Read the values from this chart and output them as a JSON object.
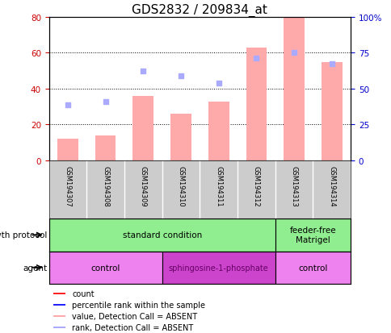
{
  "title": "GDS2832 / 209834_at",
  "samples": [
    "GSM194307",
    "GSM194308",
    "GSM194309",
    "GSM194310",
    "GSM194311",
    "GSM194312",
    "GSM194313",
    "GSM194314"
  ],
  "bar_values": [
    12,
    14,
    36,
    26,
    33,
    63,
    80,
    55
  ],
  "scatter_values": [
    31,
    33,
    50,
    47,
    43,
    57,
    60,
    54
  ],
  "left_ylim": [
    0,
    80
  ],
  "right_ylim": [
    0,
    100
  ],
  "left_yticks": [
    0,
    20,
    40,
    60,
    80
  ],
  "right_yticks": [
    0,
    25,
    50,
    75,
    100
  ],
  "right_yticklabels": [
    "0",
    "25",
    "50",
    "75",
    "100%"
  ],
  "bar_color": "#ffaaaa",
  "scatter_color": "#aaaaff",
  "bar_color_legend": "#ff2222",
  "scatter_color_legend": "#2222ff",
  "left_ylabel_color": "#cc0000",
  "right_ylabel_color": "#0000cc",
  "growth_protocol_label": "growth protocol",
  "agent_label": "agent",
  "growth_protocol_groups": [
    {
      "label": "standard condition",
      "start": 0,
      "end": 6,
      "color": "#90ee90"
    },
    {
      "label": "feeder-free\nMatrigel",
      "start": 6,
      "end": 8,
      "color": "#90ee90"
    }
  ],
  "agent_groups": [
    {
      "label": "control",
      "start": 0,
      "end": 3,
      "color": "#ee82ee"
    },
    {
      "label": "sphingosine-1-phosphate",
      "start": 3,
      "end": 6,
      "color": "#cc44cc"
    },
    {
      "label": "control",
      "start": 6,
      "end": 8,
      "color": "#ee82ee"
    }
  ],
  "legend_items": [
    {
      "label": "count",
      "color": "#ff2222"
    },
    {
      "label": "percentile rank within the sample",
      "color": "#2222ff"
    },
    {
      "label": "value, Detection Call = ABSENT",
      "color": "#ffaaaa"
    },
    {
      "label": "rank, Detection Call = ABSENT",
      "color": "#aaaaff"
    }
  ],
  "title_fontsize": 11,
  "tick_fontsize": 7.5,
  "label_fontsize": 7.5
}
